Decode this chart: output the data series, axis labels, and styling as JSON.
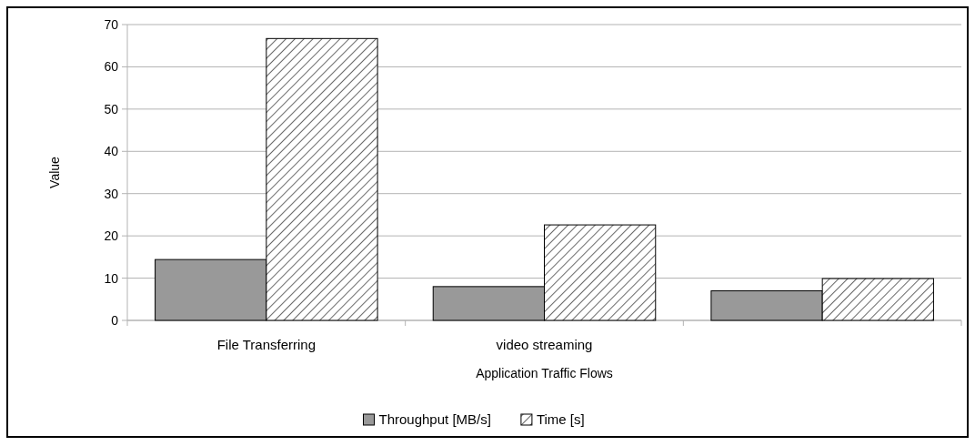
{
  "chart_data": {
    "type": "bar",
    "xlabel": "Application Traffic Flows",
    "ylabel": "Value",
    "categories": [
      "File Transferring",
      "video streaming",
      null
    ],
    "series": [
      {
        "name": "Throughput [MB/s]",
        "color": "#999999",
        "values": [
          14.4,
          8.0,
          7.0
        ]
      },
      {
        "name": "Time [s]",
        "color": "#000000",
        "values": [
          66.7,
          22.6,
          9.9
        ]
      }
    ],
    "ylim": [
      0,
      70
    ],
    "yticks": [
      0,
      10,
      20,
      30,
      40,
      50,
      60,
      70
    ],
    "grid": "y",
    "legend": "bottom"
  }
}
